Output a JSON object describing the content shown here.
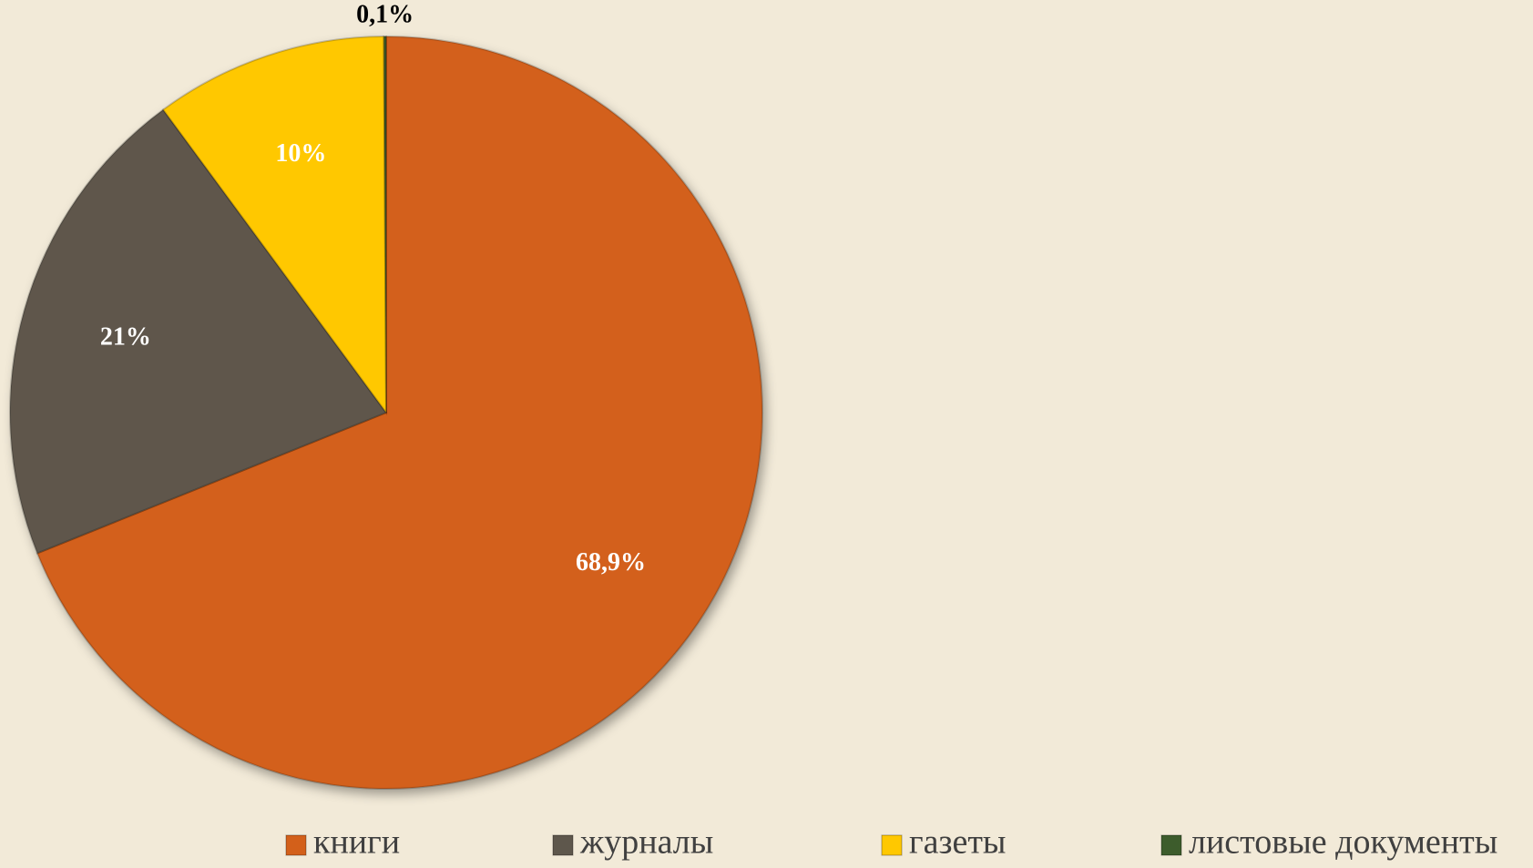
{
  "chart_data": {
    "type": "pie",
    "categories": [
      "книги",
      "журналы",
      "газеты",
      "листовые документы"
    ],
    "values": [
      68.9,
      21,
      10,
      0.1
    ],
    "value_labels": [
      "68,9%",
      "21%",
      "10%",
      "0,1%"
    ],
    "colors": [
      "#d3601a",
      "#5e574c",
      "#ffc800",
      "#3d5c2c"
    ],
    "legend": "bottom"
  }
}
